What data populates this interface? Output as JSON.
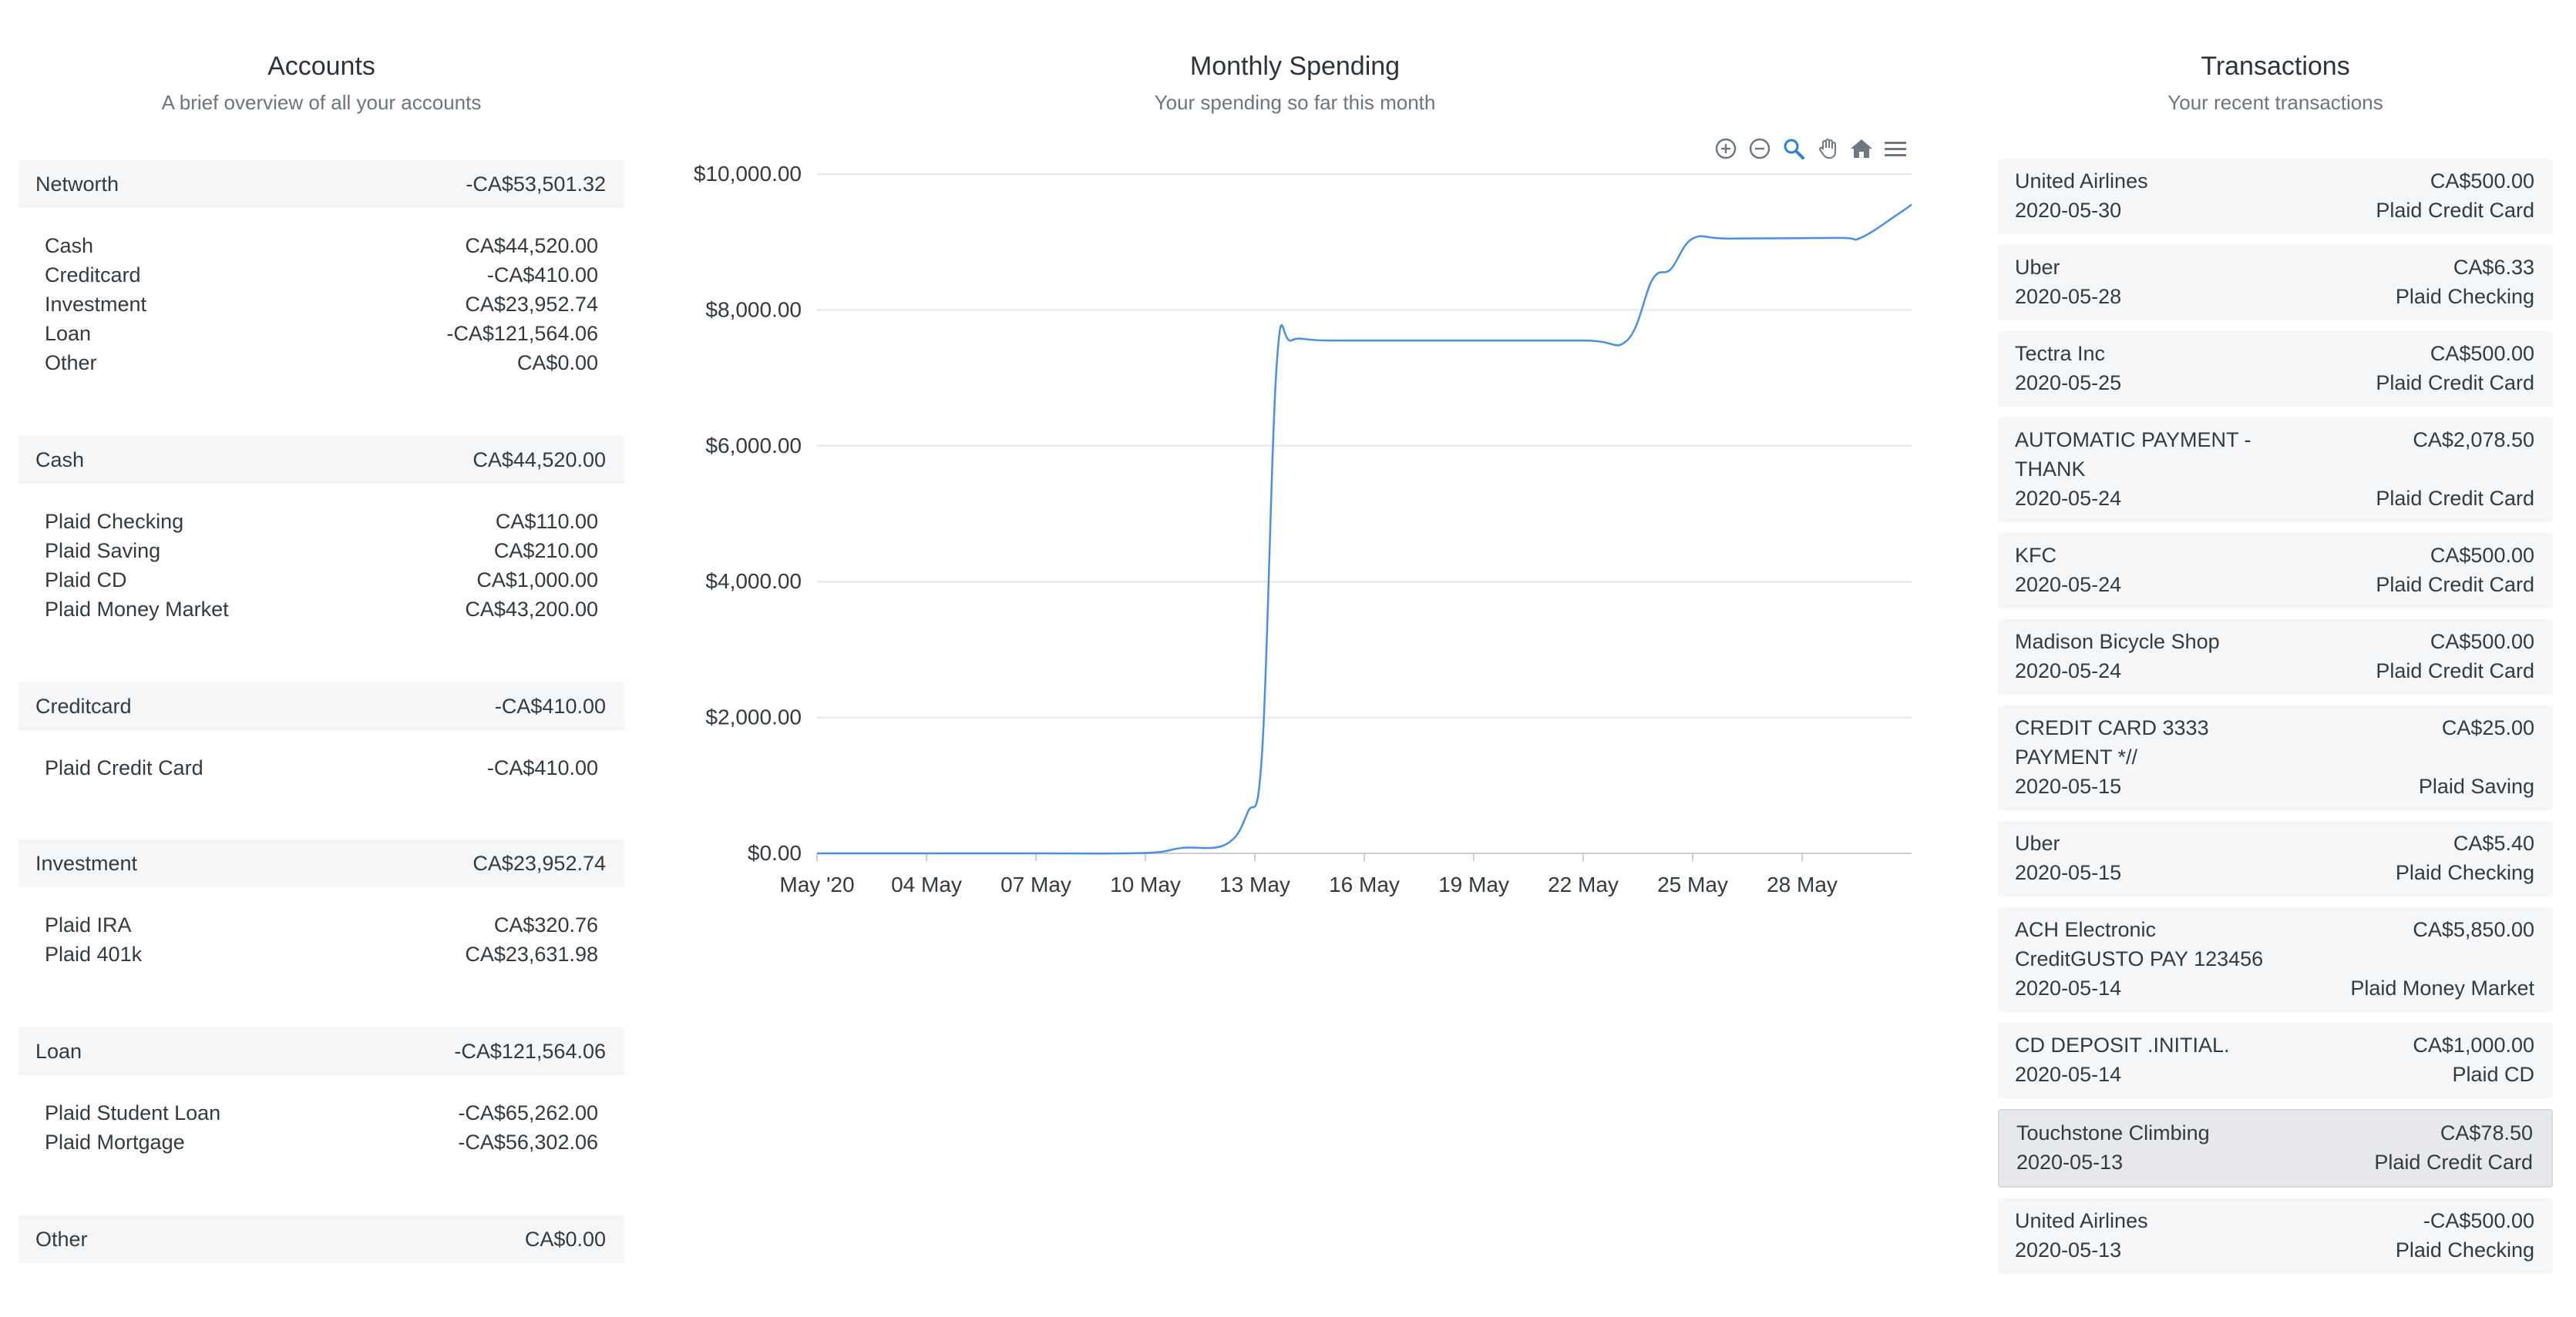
{
  "accounts": {
    "title": "Accounts",
    "subtitle": "A brief overview of all your accounts",
    "groups": [
      {
        "label": "Networth",
        "total": "-CA$53,501.32",
        "items": [
          {
            "label": "Cash",
            "value": "CA$44,520.00"
          },
          {
            "label": "Creditcard",
            "value": "-CA$410.00"
          },
          {
            "label": "Investment",
            "value": "CA$23,952.74"
          },
          {
            "label": "Loan",
            "value": "-CA$121,564.06"
          },
          {
            "label": "Other",
            "value": "CA$0.00"
          }
        ]
      },
      {
        "label": "Cash",
        "total": "CA$44,520.00",
        "items": [
          {
            "label": "Plaid Checking",
            "value": "CA$110.00"
          },
          {
            "label": "Plaid Saving",
            "value": "CA$210.00"
          },
          {
            "label": "Plaid CD",
            "value": "CA$1,000.00"
          },
          {
            "label": "Plaid Money Market",
            "value": "CA$43,200.00"
          }
        ]
      },
      {
        "label": "Creditcard",
        "total": "-CA$410.00",
        "items": [
          {
            "label": "Plaid Credit Card",
            "value": "-CA$410.00"
          }
        ]
      },
      {
        "label": "Investment",
        "total": "CA$23,952.74",
        "items": [
          {
            "label": "Plaid IRA",
            "value": "CA$320.76"
          },
          {
            "label": "Plaid 401k",
            "value": "CA$23,631.98"
          }
        ]
      },
      {
        "label": "Loan",
        "total": "-CA$121,564.06",
        "items": [
          {
            "label": "Plaid Student Loan",
            "value": "-CA$65,262.00"
          },
          {
            "label": "Plaid Mortgage",
            "value": "-CA$56,302.06"
          }
        ]
      },
      {
        "label": "Other",
        "total": "CA$0.00",
        "items": []
      }
    ]
  },
  "spending": {
    "title": "Monthly Spending",
    "subtitle": "Your spending so far this month",
    "toolbar": [
      "zoom-in-icon",
      "zoom-out-icon",
      "zoom-select-icon",
      "pan-hand-icon",
      "home-icon",
      "menu-icon"
    ],
    "accent": "#4a90e2"
  },
  "chart_data": {
    "type": "line",
    "x_ticks": [
      "May '20",
      "04 May",
      "07 May",
      "10 May",
      "13 May",
      "16 May",
      "19 May",
      "22 May",
      "25 May",
      "28 May"
    ],
    "y_ticks": [
      "$0.00",
      "$2,000.00",
      "$4,000.00",
      "$6,000.00",
      "$8,000.00",
      "$10,000.00"
    ],
    "ylim": [
      0,
      10000
    ],
    "x_range_days": [
      1,
      31
    ],
    "series": [
      {
        "x": [
          1,
          4,
          7,
          10,
          11,
          12.2,
          12.8,
          13.2,
          13.6,
          14,
          15,
          18,
          22,
          23.2,
          23.9,
          24.4,
          25,
          26,
          29,
          29.6,
          30.6,
          31
        ],
        "y": [
          0,
          0,
          0,
          5,
          80,
          130,
          600,
          1500,
          7200,
          7550,
          7550,
          7550,
          7550,
          7550,
          8450,
          8600,
          9050,
          9050,
          9060,
          9060,
          9400,
          9550
        ]
      }
    ],
    "grid": true
  },
  "transactions": {
    "title": "Transactions",
    "subtitle": "Your recent transactions",
    "items": [
      {
        "name": "United Airlines",
        "amount": "CA$500.00",
        "date": "2020-05-30",
        "account": "Plaid Credit Card"
      },
      {
        "name": "Uber",
        "amount": "CA$6.33",
        "date": "2020-05-28",
        "account": "Plaid Checking"
      },
      {
        "name": "Tectra Inc",
        "amount": "CA$500.00",
        "date": "2020-05-25",
        "account": "Plaid Credit Card"
      },
      {
        "name": "AUTOMATIC PAYMENT - THANK",
        "amount": "CA$2,078.50",
        "date": "2020-05-24",
        "account": "Plaid Credit Card"
      },
      {
        "name": "KFC",
        "amount": "CA$500.00",
        "date": "2020-05-24",
        "account": "Plaid Credit Card"
      },
      {
        "name": "Madison Bicycle Shop",
        "amount": "CA$500.00",
        "date": "2020-05-24",
        "account": "Plaid Credit Card"
      },
      {
        "name": "CREDIT CARD 3333 PAYMENT *//",
        "amount": "CA$25.00",
        "date": "2020-05-15",
        "account": "Plaid Saving"
      },
      {
        "name": "Uber",
        "amount": "CA$5.40",
        "date": "2020-05-15",
        "account": "Plaid Checking"
      },
      {
        "name": "ACH Electronic CreditGUSTO PAY 123456",
        "amount": "CA$5,850.00",
        "date": "2020-05-14",
        "account": "Plaid Money Market"
      },
      {
        "name": "CD DEPOSIT .INITIAL.",
        "amount": "CA$1,000.00",
        "date": "2020-05-14",
        "account": "Plaid CD"
      },
      {
        "name": "Touchstone Climbing",
        "amount": "CA$78.50",
        "date": "2020-05-13",
        "account": "Plaid Credit Card",
        "selected": true
      },
      {
        "name": "United Airlines",
        "amount": "-CA$500.00",
        "date": "2020-05-13",
        "account": "Plaid Checking"
      }
    ]
  }
}
